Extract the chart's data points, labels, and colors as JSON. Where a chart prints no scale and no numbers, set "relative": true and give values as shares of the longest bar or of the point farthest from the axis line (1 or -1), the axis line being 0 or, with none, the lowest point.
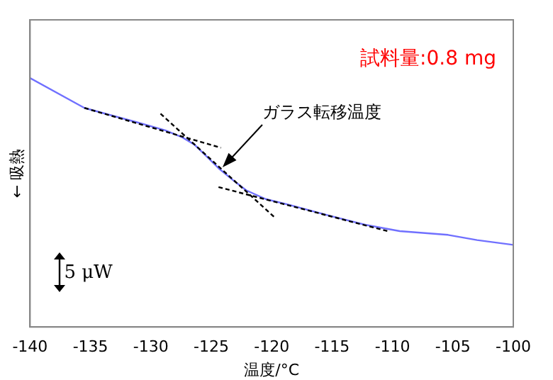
{
  "chart_data": {
    "type": "line",
    "relative": true,
    "xlabel": "温度/°C",
    "ylabel": "← 吸熱",
    "xlim": [
      -140,
      -100
    ],
    "xticks": [
      -140,
      -135,
      -130,
      -125,
      -120,
      -115,
      -110,
      -105,
      -100
    ],
    "grid": false,
    "legend": false,
    "marker": "none",
    "series": [
      {
        "color": "#7070ff",
        "line_style": "solid",
        "x": [
          -140,
          -135.5,
          -133.1,
          -131.2,
          -128.8,
          -127.4,
          -126.4,
          -125.4,
          -124.4,
          -123.2,
          -122.1,
          -120.5,
          -118.5,
          -115.3,
          -112.2,
          -109.4,
          -105.4,
          -103,
          -100
        ],
        "values": [
          1,
          0.88,
          0.848,
          0.823,
          0.79,
          0.762,
          0.733,
          0.686,
          0.638,
          0.59,
          0.549,
          0.514,
          0.49,
          0.448,
          0.41,
          0.385,
          0.37,
          0.349,
          0.33
        ]
      },
      {
        "color": "#000000",
        "line_style": "dashed",
        "x": [
          -135.5,
          -124.2
        ],
        "values": [
          0.88,
          0.72
        ]
      },
      {
        "color": "#000000",
        "line_style": "dashed",
        "x": [
          -129.2,
          -119.7
        ],
        "values": [
          0.857,
          0.438
        ]
      },
      {
        "color": "#000000",
        "line_style": "dashed",
        "x": [
          -124.4,
          -110.4
        ],
        "values": [
          0.562,
          0.385
        ]
      }
    ],
    "annotations": [
      {
        "text": "ガラス転移温度",
        "x": -124.3,
        "y": 0.63
      },
      "試料量:0.8 mg",
      "5 μW"
    ]
  }
}
